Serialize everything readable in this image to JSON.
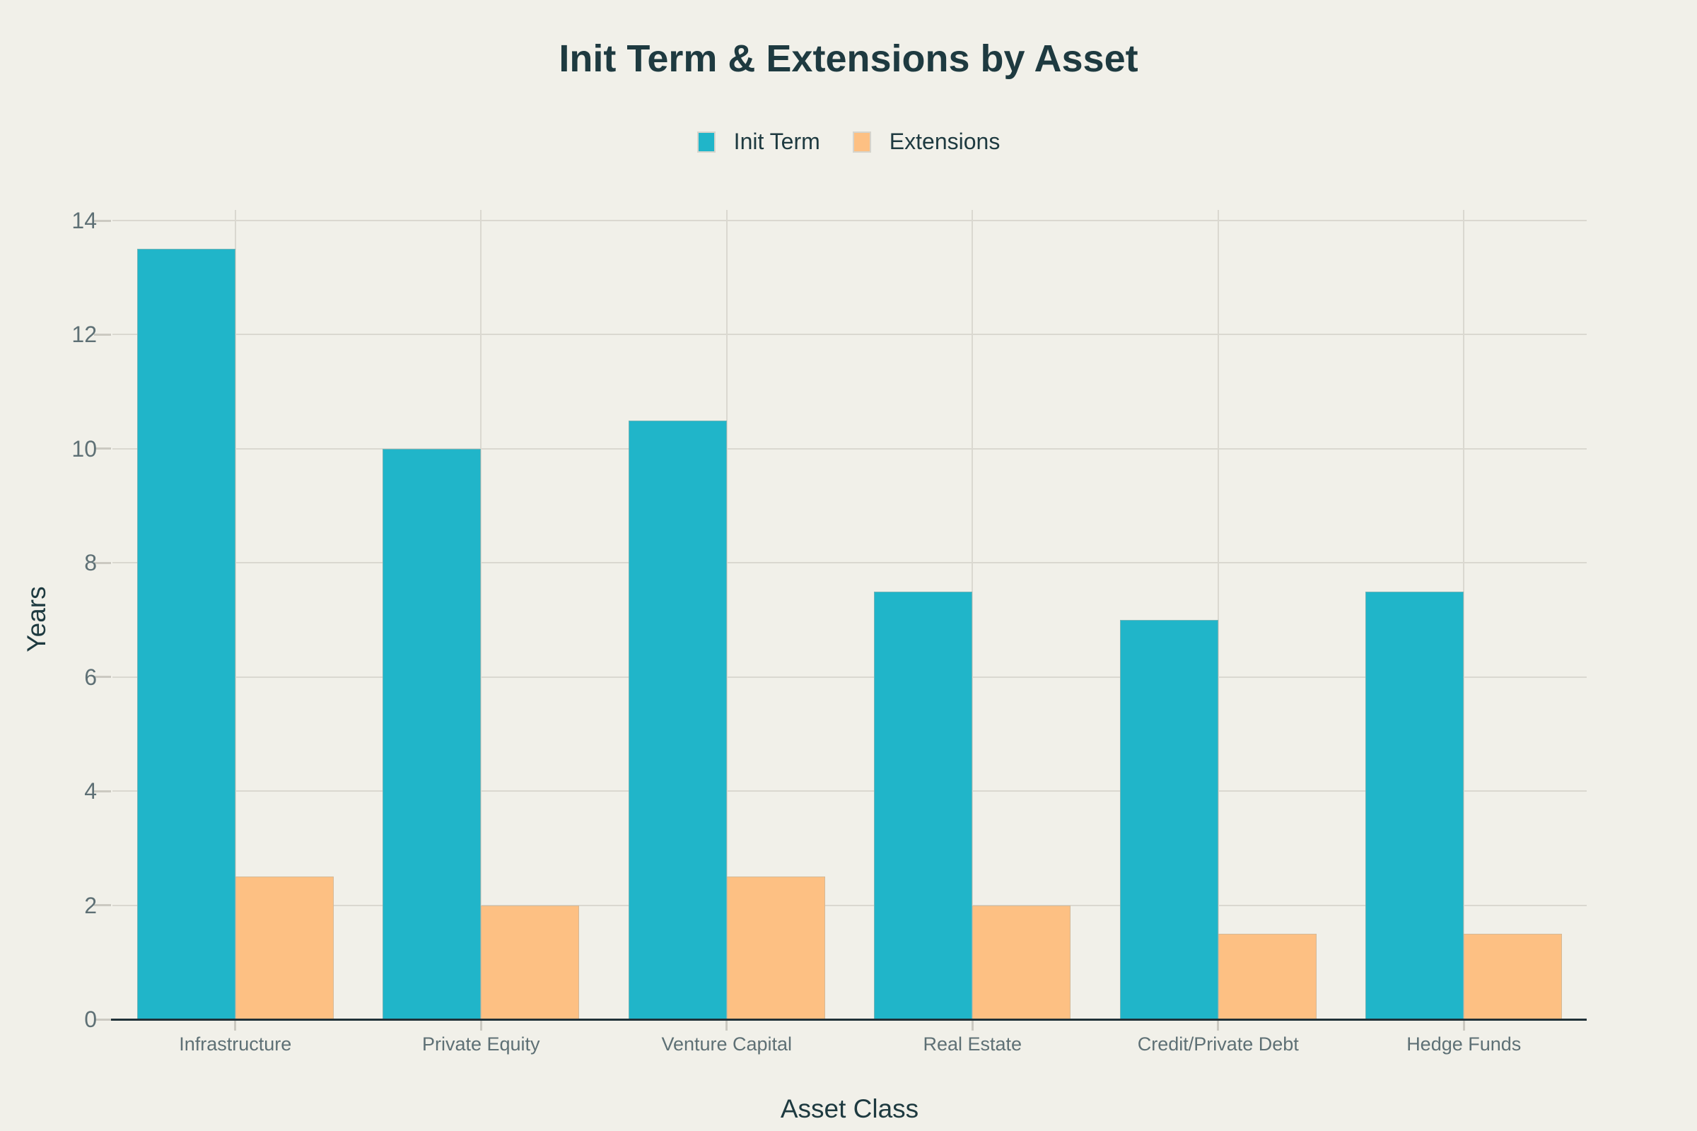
{
  "title": "Init Term & Extensions by Asset",
  "colors": {
    "background": "#f1f0e9",
    "grid": "#dad8d0",
    "tick": "#cbc9c1",
    "axis_line": "#203138",
    "heading_text": "#1e3a40",
    "tick_label": "#5e7075",
    "init_term": "#20b5c9",
    "extensions": "#fdc083"
  },
  "chart_data": {
    "type": "bar",
    "title": "Init Term & Extensions by Asset",
    "categories": [
      "Infrastructure",
      "Private Equity",
      "Venture Capital",
      "Real Estate",
      "Credit/Private Debt",
      "Hedge Funds"
    ],
    "series": [
      {
        "name": "Init Term",
        "color": "#20b5c9",
        "values": [
          13.5,
          10,
          10.5,
          7.5,
          7,
          7.5
        ]
      },
      {
        "name": "Extensions",
        "color": "#fdc083",
        "values": [
          2.5,
          2,
          2.5,
          2,
          1.5,
          1.5
        ]
      }
    ],
    "xlabel": "Asset Class",
    "ylabel": "Years",
    "ylim": [
      0,
      14
    ],
    "yticks": [
      0,
      2,
      4,
      6,
      8,
      10,
      12,
      14
    ],
    "grid": true,
    "legend_position": "top"
  }
}
